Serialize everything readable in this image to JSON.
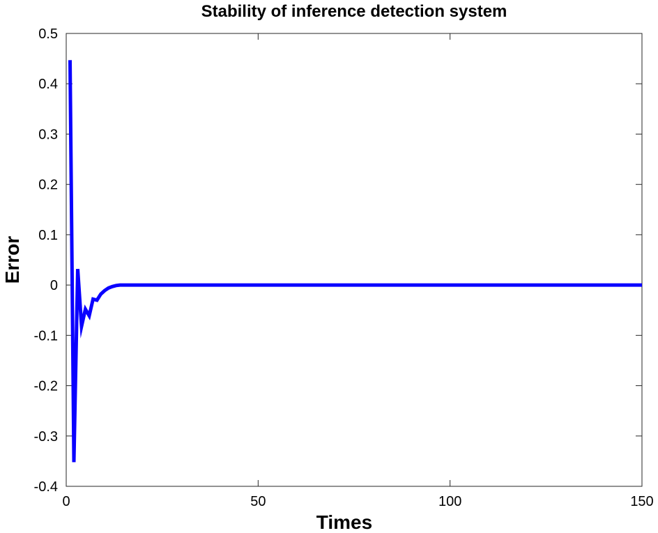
{
  "chart_data": {
    "type": "line",
    "title": "Stability of inference detection system",
    "xlabel": "Times",
    "ylabel": "Error",
    "xlim": [
      0,
      150
    ],
    "ylim": [
      -0.4,
      0.5
    ],
    "xticks": [
      0,
      50,
      100,
      150
    ],
    "xtick_labels": [
      "0",
      "50",
      "100",
      "150"
    ],
    "yticks": [
      -0.4,
      -0.3,
      -0.2,
      -0.1,
      0,
      0.1,
      0.2,
      0.3,
      0.4,
      0.5
    ],
    "ytick_labels": [
      "-0.4",
      "-0.3",
      "-0.2",
      "-0.1",
      "0",
      "0.1",
      "0.2",
      "0.3",
      "0.4",
      "0.5"
    ],
    "grid": false,
    "series": [
      {
        "color": "#0a00ff",
        "x": [
          1,
          2,
          3,
          4,
          5,
          6,
          7,
          8,
          9,
          10,
          11,
          12,
          13,
          14,
          15,
          20,
          30,
          40,
          50,
          60,
          70,
          80,
          90,
          100,
          110,
          120,
          130,
          140,
          150
        ],
        "y": [
          0.447,
          -0.352,
          0.032,
          -0.082,
          -0.048,
          -0.061,
          -0.028,
          -0.03,
          -0.018,
          -0.011,
          -0.006,
          -0.003,
          -0.001,
          0,
          0,
          0,
          0,
          0,
          0,
          0,
          0,
          0,
          0,
          0,
          0,
          0,
          0,
          0,
          0
        ]
      }
    ]
  }
}
